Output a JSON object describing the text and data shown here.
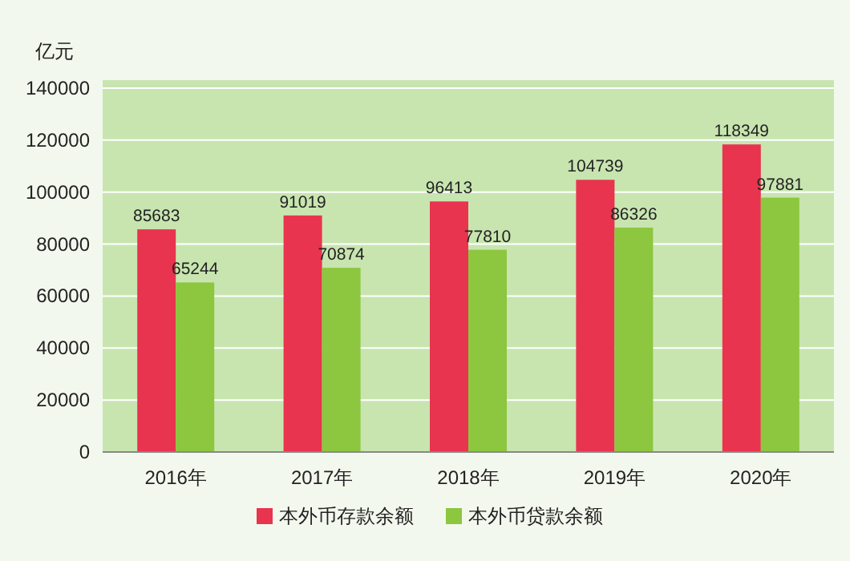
{
  "chart_data": {
    "type": "bar",
    "ylabel": "亿元",
    "categories": [
      "2016年",
      "2017年",
      "2018年",
      "2019年",
      "2020年"
    ],
    "series": [
      {
        "name": "本外币存款余额",
        "color": "#e8344e",
        "values": [
          85683,
          91019,
          96413,
          104739,
          118349
        ]
      },
      {
        "name": "本外币贷款余额",
        "color": "#8dc63f",
        "values": [
          65244,
          70874,
          77810,
          86326,
          97881
        ]
      }
    ],
    "ylim": [
      0,
      140000
    ],
    "yticks": [
      0,
      20000,
      40000,
      60000,
      80000,
      100000,
      120000,
      140000
    ],
    "grid": "y",
    "legend": "bottom",
    "data_labels": true
  }
}
